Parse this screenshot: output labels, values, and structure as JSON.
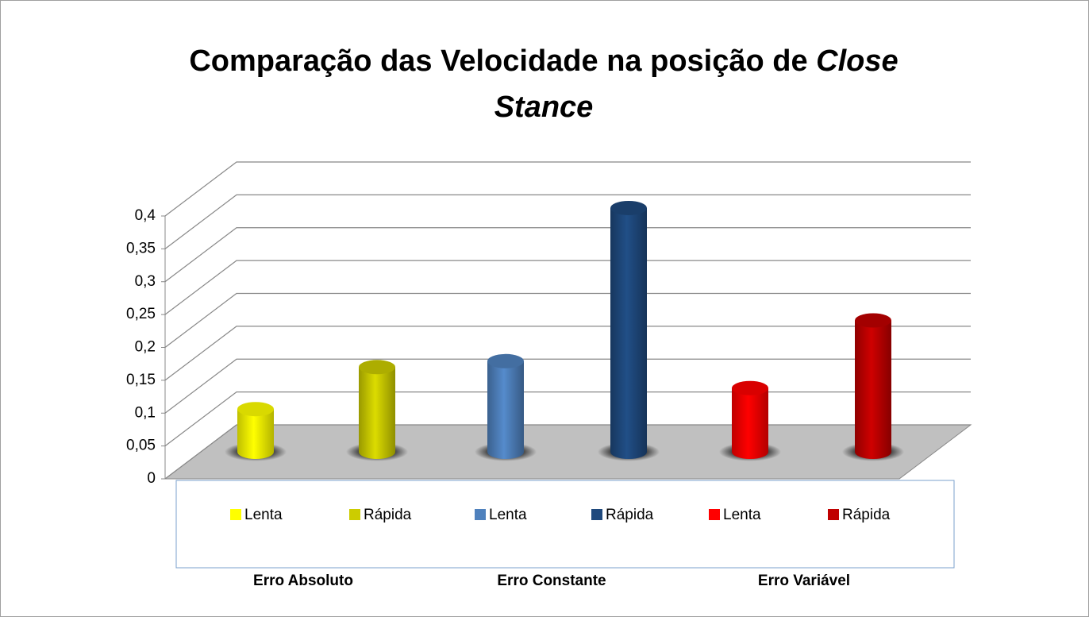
{
  "chart_data": {
    "type": "bar3d",
    "title": {
      "text": "Comparação das Velocidade na posição de",
      "italic": "Close Stance"
    },
    "ylim": [
      0,
      0.4
    ],
    "yticks": [
      0,
      {
        "value": 0.05,
        "label": "0,05"
      },
      {
        "value": 0.1,
        "label": "0,1"
      },
      {
        "value": 0.15,
        "label": "0,15"
      },
      {
        "value": 0.2,
        "label": "0,2"
      },
      {
        "value": 0.25,
        "label": "0,25"
      },
      {
        "value": 0.3,
        "label": "0,3"
      },
      {
        "value": 0.35,
        "label": "0,35"
      },
      {
        "value": 0.4,
        "label": "0,4"
      }
    ],
    "grid": true,
    "groups": [
      {
        "label": "Erro Absoluto",
        "series": [
          {
            "name": "Lenta",
            "color": "#ffff00",
            "values": [
              0.065
            ]
          },
          {
            "name": "Rápida",
            "color": "#cccc00",
            "values": [
              0.129
            ]
          }
        ]
      },
      {
        "label": "Erro Constante",
        "series": [
          {
            "name": "Lenta",
            "color": "#4f81bd",
            "values": [
              0.138
            ]
          },
          {
            "name": "Rápida",
            "color": "#1f497d",
            "values": [
              0.371
            ]
          }
        ]
      },
      {
        "label": "Erro Variável",
        "series": [
          {
            "name": "Lenta",
            "color": "#ff0000",
            "values": [
              0.097
            ]
          },
          {
            "name": "Rápida",
            "color": "#c00000",
            "values": [
              0.2
            ]
          }
        ]
      }
    ]
  }
}
